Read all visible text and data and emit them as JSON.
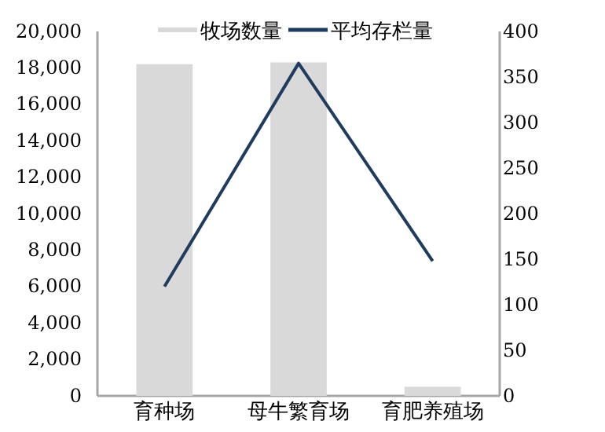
{
  "chart_data": {
    "type": "bar",
    "categories": [
      "育种场",
      "母牛繁育场",
      "育肥养殖场"
    ],
    "series": [
      {
        "name": "牧场数量",
        "color": "#d9d9d9",
        "values": [
          18200,
          18300,
          500
        ]
      },
      {
        "name": "平均存栏量",
        "type": "line",
        "axis": "y2",
        "color": "#1f3b5e",
        "values": [
          120,
          365,
          148
        ]
      }
    ],
    "ylim": [
      0,
      20000
    ],
    "yticks": [
      0,
      {
        "value": 2000,
        "label": "2,000"
      },
      {
        "value": 4000,
        "label": "4,000"
      },
      {
        "value": 6000,
        "label": "6,000"
      },
      {
        "value": 8000,
        "label": "8,000"
      },
      {
        "value": 10000,
        "label": "10,000"
      },
      {
        "value": 12000,
        "label": "12,000"
      },
      {
        "value": 14000,
        "label": "14,000"
      },
      {
        "value": 16000,
        "label": "16,000"
      },
      {
        "value": 18000,
        "label": "18,000"
      },
      {
        "value": 20000,
        "label": "20,000"
      }
    ],
    "y2lim": [
      0,
      400
    ],
    "y2ticks": [
      0,
      50,
      100,
      150,
      200,
      250,
      300,
      350,
      400
    ],
    "legend": "top",
    "grid": false,
    "marker": "none"
  }
}
